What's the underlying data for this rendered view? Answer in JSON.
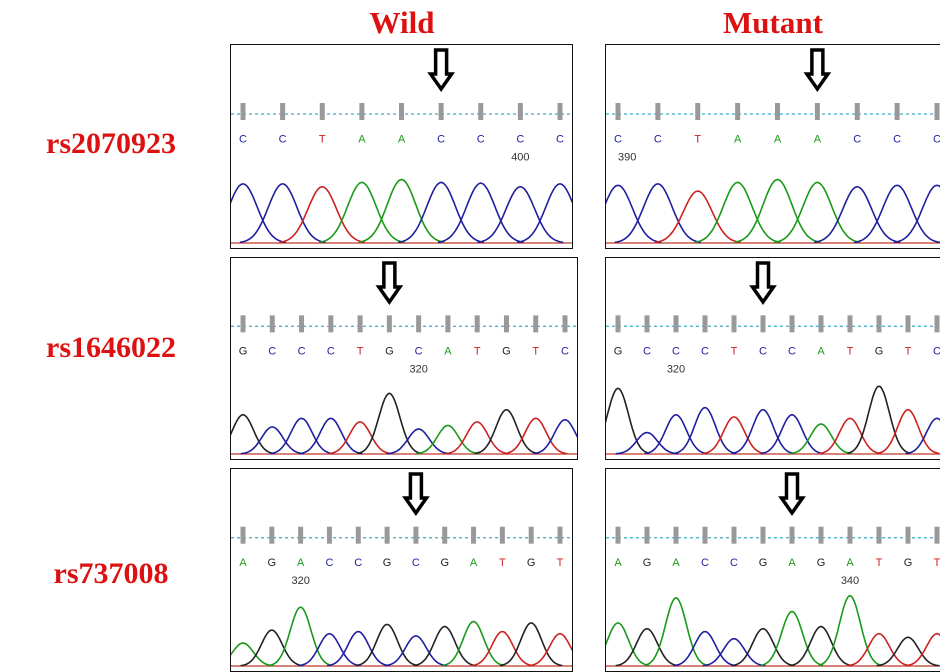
{
  "colors": {
    "label": "#dd1111",
    "baseline": "#c0392b",
    "guide": "#4fb3cf",
    "tick": "#999999",
    "bases": {
      "A": "#1a9a1a",
      "C": "#1f1fa0",
      "G": "#222222",
      "T": "#cc2222"
    }
  },
  "columns": [
    {
      "label": "Wild"
    },
    {
      "label": "Mutant"
    }
  ],
  "rows": [
    {
      "label": "rs2070923",
      "panels": [
        {
          "bases": [
            "C",
            "C",
            "T",
            "A",
            "A",
            "C",
            "C",
            "C",
            "C"
          ],
          "positions": [
            {
              "index": 7,
              "label": "400"
            }
          ],
          "arrow_index": 5,
          "peaks": [
            0.82,
            0.82,
            0.78,
            0.84,
            0.88,
            0.84,
            0.83,
            0.78,
            0.82
          ]
        },
        {
          "bases": [
            "C",
            "C",
            "T",
            "A",
            "A",
            "A",
            "C",
            "C",
            "C"
          ],
          "positions": [
            {
              "index": 0,
              "label": "390"
            }
          ],
          "arrow_index": 5,
          "peaks": [
            0.8,
            0.82,
            0.72,
            0.84,
            0.88,
            0.84,
            0.78,
            0.8,
            0.8
          ]
        }
      ]
    },
    {
      "label": "rs1646022",
      "panels": [
        {
          "bases": [
            "G",
            "C",
            "C",
            "C",
            "T",
            "G",
            "C",
            "A",
            "T",
            "G",
            "T",
            "C"
          ],
          "positions": [
            {
              "index": 6,
              "label": "320"
            }
          ],
          "arrow_index": 5,
          "peaks": [
            0.55,
            0.38,
            0.5,
            0.5,
            0.45,
            0.85,
            0.35,
            0.4,
            0.45,
            0.62,
            0.5,
            0.48
          ]
        },
        {
          "bases": [
            "G",
            "C",
            "C",
            "C",
            "T",
            "C",
            "C",
            "A",
            "T",
            "G",
            "T",
            "C"
          ],
          "positions": [
            {
              "index": 2,
              "label": "320"
            }
          ],
          "arrow_index": 5,
          "peaks": [
            0.92,
            0.3,
            0.55,
            0.65,
            0.52,
            0.62,
            0.55,
            0.42,
            0.5,
            0.95,
            0.62,
            0.5
          ]
        }
      ]
    },
    {
      "label": "rs737008",
      "panels": [
        {
          "bases": [
            "A",
            "G",
            "A",
            "C",
            "C",
            "G",
            "C",
            "G",
            "A",
            "T",
            "G",
            "T"
          ],
          "positions": [
            {
              "index": 2,
              "label": "320"
            }
          ],
          "arrow_index": 6,
          "peaks": [
            0.32,
            0.5,
            0.82,
            0.45,
            0.48,
            0.58,
            0.42,
            0.55,
            0.62,
            0.48,
            0.6,
            0.45
          ]
        },
        {
          "bases": [
            "A",
            "G",
            "A",
            "C",
            "C",
            "G",
            "A",
            "G",
            "A",
            "T",
            "G",
            "T"
          ],
          "positions": [
            {
              "index": 8,
              "label": "340"
            }
          ],
          "arrow_index": 6,
          "peaks": [
            0.6,
            0.52,
            0.95,
            0.48,
            0.38,
            0.52,
            0.76,
            0.55,
            0.98,
            0.45,
            0.4,
            0.45
          ]
        }
      ]
    }
  ]
}
